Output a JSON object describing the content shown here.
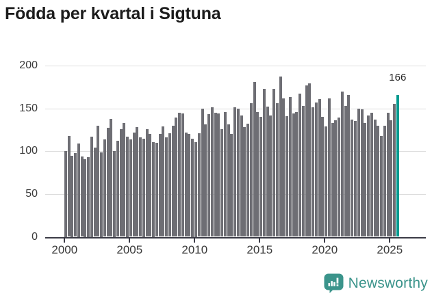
{
  "title": "Födda per kvartal i Sigtuna",
  "annotation": {
    "text": "166"
  },
  "footer": {
    "brand": "Newsworthy"
  },
  "colors": {
    "bar": "#6e6e74",
    "highlight": "#009a8f",
    "grid": "#dcdcdc",
    "axis": "#3a3a45",
    "tick_label": "#3b3b3b",
    "title": "#1c1c1c",
    "logo": "#3b948b"
  },
  "chart_data": {
    "type": "bar",
    "title": "Födda per kvartal i Sigtuna",
    "xlabel": "",
    "ylabel": "",
    "ylim": [
      0,
      200
    ],
    "yticks": [
      0,
      50,
      100,
      150,
      200
    ],
    "xtick_years": [
      2000,
      2005,
      2010,
      2015,
      2020,
      2025
    ],
    "grid": true,
    "legend": "none",
    "start_year": 2000,
    "start_quarter": 1,
    "end_period": "2025 Q3",
    "highlight_last_bar": true,
    "last_bar_label": "166",
    "values": [
      100,
      118,
      95,
      98,
      109,
      94,
      91,
      93,
      117,
      104,
      130,
      99,
      114,
      127,
      138,
      100,
      112,
      126,
      133,
      117,
      114,
      122,
      128,
      116,
      115,
      126,
      120,
      111,
      110,
      120,
      129,
      116,
      121,
      130,
      139,
      145,
      144,
      122,
      120,
      115,
      111,
      121,
      150,
      131,
      143,
      151,
      145,
      144,
      126,
      146,
      131,
      120,
      151,
      150,
      142,
      128,
      132,
      156,
      181,
      146,
      140,
      173,
      152,
      142,
      173,
      156,
      187,
      162,
      141,
      163,
      144,
      146,
      167,
      153,
      177,
      179,
      151,
      157,
      161,
      140,
      129,
      162,
      133,
      136,
      139,
      170,
      153,
      166,
      137,
      135,
      150,
      149,
      133,
      142,
      145,
      137,
      130,
      118,
      130,
      145,
      136,
      155,
      166
    ]
  }
}
